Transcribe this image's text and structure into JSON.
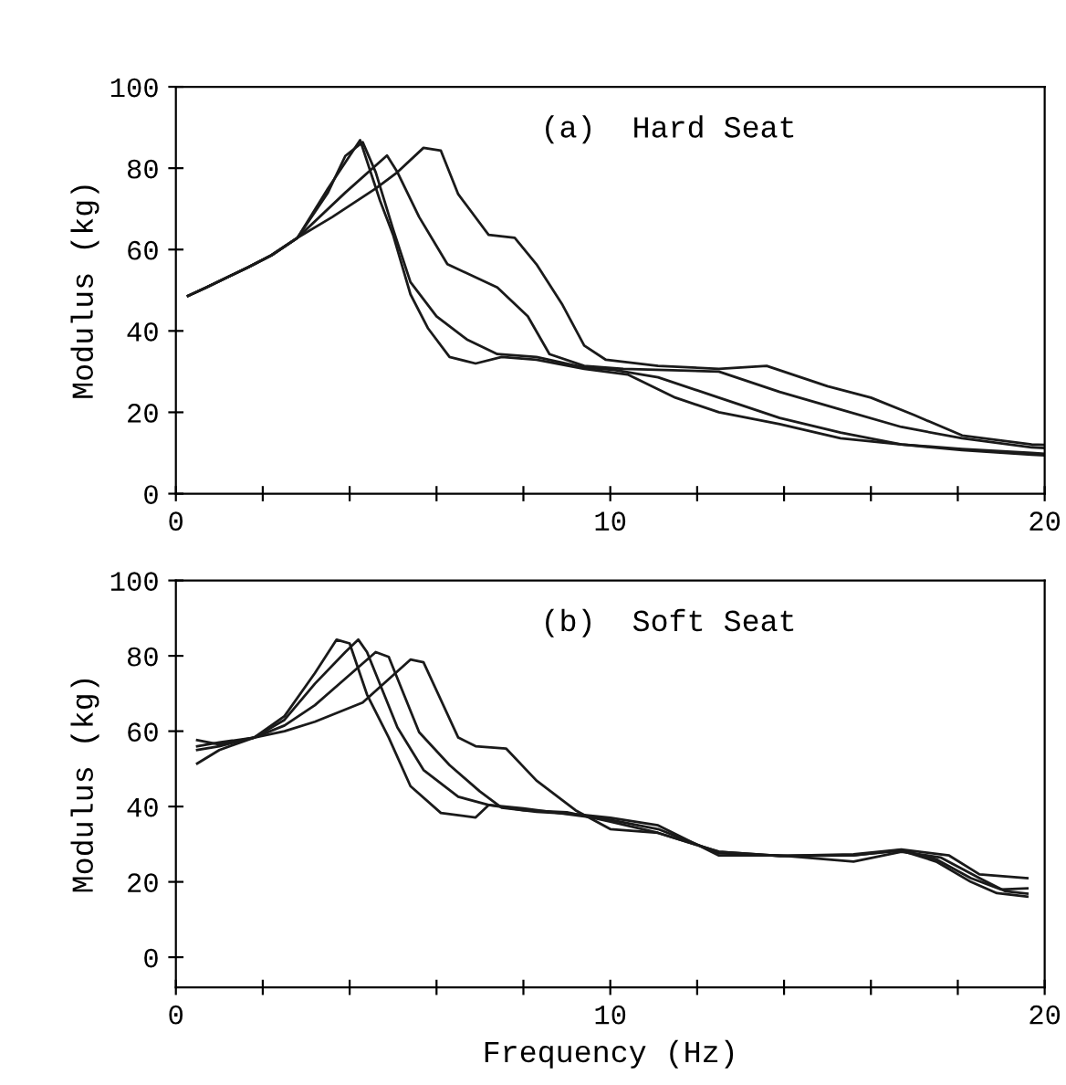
{
  "chart_data": [
    {
      "type": "line",
      "title": "(a)  Hard Seat",
      "ylabel": "Modulus (kg)",
      "xlim": [
        0,
        20
      ],
      "ylim": [
        0,
        100
      ],
      "xticks": [
        0,
        {
          "value": 2,
          "label": null
        },
        {
          "value": 4,
          "label": null
        },
        {
          "value": 6,
          "label": null
        },
        {
          "value": 8,
          "label": null
        },
        10,
        {
          "value": 12,
          "label": null
        },
        {
          "value": 14,
          "label": null
        },
        {
          "value": 16,
          "label": null
        },
        {
          "value": 18,
          "label": null
        },
        20
      ],
      "yticks": [
        0,
        20,
        40,
        60,
        80,
        100
      ],
      "grid": false,
      "marker": "none",
      "line_style": "solid",
      "series": [
        {
          "color": "#1a1a1a",
          "x": [
            0.28,
            0.7,
            1.67,
            2.2,
            2.8,
            3.5,
            4.24,
            4.7,
            5.0,
            5.4,
            5.8,
            6.3,
            6.9,
            7.5,
            8.3,
            9.4,
            10.4,
            11.5,
            12.5,
            13.9,
            15.3,
            16.7,
            18.1,
            19.7,
            20
          ],
          "values": [
            48.6,
            50.7,
            55.7,
            58.6,
            62.9,
            75,
            86.9,
            72,
            63.6,
            49,
            40.7,
            33.6,
            32,
            33.6,
            32.9,
            30.7,
            29.3,
            23.6,
            20,
            17.1,
            13.6,
            12.1,
            10.7,
            9.6,
            9.4
          ]
        },
        {
          "color": "#1a1a1a",
          "x": [
            0.28,
            0.7,
            1.67,
            2.2,
            2.8,
            3.5,
            3.9,
            4.3,
            4.6,
            5.0,
            5.4,
            6.0,
            6.7,
            7.4,
            8.3,
            9.4,
            10.1,
            11.1,
            12.5,
            13.9,
            15.3,
            16.7,
            18.1,
            19.7,
            20
          ],
          "values": [
            48.6,
            50.7,
            55.7,
            58.6,
            62.9,
            74,
            83,
            86.4,
            79,
            65,
            52,
            43.6,
            37.9,
            34.3,
            33.6,
            31,
            30.4,
            28.6,
            23.6,
            18.6,
            15,
            12.1,
            11,
            10,
            9.8
          ]
        },
        {
          "color": "#1a1a1a",
          "x": [
            0.28,
            0.7,
            1.67,
            2.2,
            2.8,
            3.9,
            4.86,
            5.1,
            5.6,
            6.25,
            7.4,
            8.1,
            8.6,
            9.4,
            10.3,
            12.5,
            13.9,
            15.3,
            16.7,
            18.1,
            19.7,
            20
          ],
          "values": [
            48.6,
            50.7,
            55.7,
            58.6,
            62.9,
            74,
            83.1,
            79,
            68,
            56.4,
            50.7,
            43.6,
            34.3,
            31.4,
            30.7,
            30,
            25,
            20.7,
            16.4,
            13.6,
            11.4,
            11.2
          ]
        },
        {
          "color": "#1a1a1a",
          "x": [
            0.28,
            0.7,
            1.67,
            2.2,
            2.8,
            3.6,
            4.6,
            5.1,
            5.7,
            6.1,
            6.5,
            7.2,
            7.8,
            8.3,
            8.9,
            9.4,
            9.9,
            11.1,
            12.5,
            13.6,
            15.0,
            16.0,
            17.0,
            18.1,
            19.7,
            20
          ],
          "values": [
            48.6,
            50.7,
            55.7,
            58.6,
            62.9,
            68,
            75,
            79,
            85,
            84.3,
            73.6,
            63.6,
            62.9,
            56.4,
            46.4,
            36.4,
            32.9,
            31.4,
            30.7,
            31.4,
            26.4,
            23.6,
            19.3,
            14.3,
            12.1,
            12
          ]
        }
      ]
    },
    {
      "type": "line",
      "title": "(b)  Soft Seat",
      "xlabel": "Frequency (Hz)",
      "ylabel": "Modulus (kg)",
      "xlim": [
        0,
        20
      ],
      "ylim": [
        -8,
        100
      ],
      "xticks": [
        0,
        {
          "value": 2,
          "label": null
        },
        {
          "value": 4,
          "label": null
        },
        {
          "value": 6,
          "label": null
        },
        {
          "value": 8,
          "label": null
        },
        10,
        {
          "value": 12,
          "label": null
        },
        {
          "value": 14,
          "label": null
        },
        {
          "value": 16,
          "label": null
        },
        {
          "value": 18,
          "label": null
        },
        20
      ],
      "yticks": [
        0,
        20,
        40,
        60,
        80,
        100
      ],
      "grid": false,
      "marker": "none",
      "line_style": "solid",
      "series": [
        {
          "color": "#1a1a1a",
          "x": [
            0.49,
            1.0,
            1.8,
            2.5,
            3.2,
            3.7,
            4.0,
            4.4,
            4.9,
            5.4,
            6.1,
            6.9,
            7.2,
            8.0,
            9.0,
            10.0,
            11.1,
            12.5,
            13.9,
            15.6,
            16.7,
            17.5,
            18.3,
            18.9,
            19.6
          ],
          "values": [
            56,
            57,
            58.3,
            64,
            75.4,
            84.3,
            83.3,
            69.7,
            58.3,
            45.4,
            38.3,
            37.1,
            40.4,
            39.5,
            38,
            36.5,
            34,
            27.6,
            26.9,
            27.1,
            28.3,
            25.4,
            20,
            17,
            16.1
          ]
        },
        {
          "color": "#1a1a1a",
          "x": [
            0.49,
            1.0,
            1.8,
            2.5,
            3.2,
            3.9,
            4.2,
            4.4,
            5.1,
            5.7,
            6.5,
            7.2,
            8.0,
            9.0,
            10.0,
            11.1,
            12.5,
            13.9,
            15.6,
            16.7,
            17.5,
            18.3,
            19.0,
            19.6
          ],
          "values": [
            51.4,
            55,
            58.3,
            63,
            72.6,
            81,
            84.3,
            81,
            61,
            49.7,
            42.6,
            40.4,
            39,
            38.5,
            36,
            33,
            28,
            26.9,
            27,
            28.5,
            26,
            21,
            18,
            18.3
          ]
        },
        {
          "color": "#1a1a1a",
          "x": [
            0.49,
            1.0,
            1.8,
            2.5,
            3.2,
            4.6,
            4.9,
            5.6,
            6.3,
            7.0,
            7.5,
            8.3,
            9.2,
            10.0,
            11.1,
            12.5,
            13.9,
            15.6,
            16.7,
            17.6,
            18.5,
            19.1,
            19.6
          ],
          "values": [
            57.6,
            56.5,
            58.3,
            61.5,
            66.9,
            81,
            79.7,
            59.7,
            51,
            44,
            39.7,
            38.6,
            38,
            37,
            35,
            27,
            27,
            25.4,
            28,
            26.5,
            21,
            17.5,
            16.9
          ]
        },
        {
          "color": "#1a1a1a",
          "x": [
            0.49,
            1.0,
            1.8,
            2.5,
            3.2,
            4.3,
            5.4,
            5.7,
            6.5,
            6.9,
            7.6,
            8.3,
            9.2,
            10.0,
            11.1,
            12.5,
            13.9,
            15.6,
            16.7,
            17.8,
            18.5,
            19.6
          ],
          "values": [
            55,
            56,
            58.3,
            60,
            62.5,
            67.6,
            79,
            78.3,
            58.3,
            56,
            55.4,
            46.9,
            39,
            34,
            33,
            28,
            26.9,
            27.3,
            28.6,
            27,
            22,
            21
          ]
        }
      ]
    }
  ]
}
